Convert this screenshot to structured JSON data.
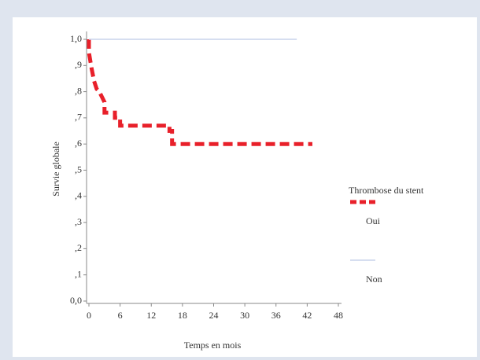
{
  "chart_data": {
    "type": "line",
    "x_label": "Temps en mois",
    "y_label": "Survie globale",
    "series": [
      {
        "name": "Oui",
        "color": "#e8202a",
        "style": "dashed",
        "x": [
          0,
          0,
          0.5,
          1,
          1.5,
          2,
          2.5,
          3,
          3,
          4,
          5,
          5,
          6,
          6,
          15.5,
          15.5,
          16,
          16,
          43
        ],
        "values": [
          1,
          0.95,
          0.89,
          0.84,
          0.81,
          0.8,
          0.78,
          0.76,
          0.72,
          0.72,
          0.72,
          0.7,
          0.7,
          0.67,
          0.67,
          0.65,
          0.65,
          0.6,
          0.6
        ]
      },
      {
        "name": "Non",
        "color": "#c9d3ec",
        "style": "solid",
        "x": [
          0,
          40
        ],
        "values": [
          1,
          1
        ]
      }
    ],
    "legend_title": "Thrombose du stent",
    "legend": "right",
    "xlim": [
      0,
      48
    ],
    "xticks": [
      0,
      6,
      12,
      18,
      24,
      30,
      36,
      42,
      48
    ],
    "ylim": [
      0,
      1
    ],
    "yticks": [
      {
        "value": 0,
        "label": "0,0"
      },
      {
        "value": 0.1,
        "label": ",1"
      },
      {
        "value": 0.2,
        "label": ",2"
      },
      {
        "value": 0.3,
        "label": ",3"
      },
      {
        "value": 0.4,
        "label": ",4"
      },
      {
        "value": 0.5,
        "label": ",5"
      },
      {
        "value": 0.6,
        "label": ",6"
      },
      {
        "value": 0.7,
        "label": ",7"
      },
      {
        "value": 0.8,
        "label": ",8"
      },
      {
        "value": 0.9,
        "label": ",9"
      },
      {
        "value": 1,
        "label": "1,0"
      }
    ]
  }
}
